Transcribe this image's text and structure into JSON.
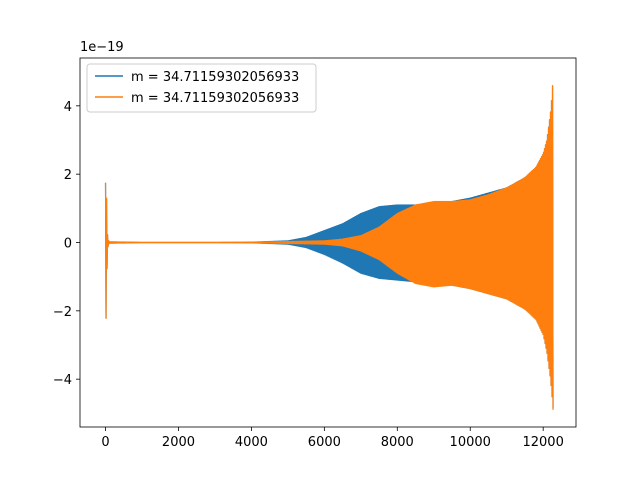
{
  "chart_data": {
    "type": "line",
    "title": "",
    "xlabel": "",
    "ylabel": "",
    "y_offset_label": "1e−19",
    "xlim": [
      -700,
      12900
    ],
    "ylim": [
      -5.4,
      5.4
    ],
    "x_ticks": [
      0,
      2000,
      4000,
      6000,
      8000,
      10000,
      12000
    ],
    "x_tick_labels": [
      "0",
      "2000",
      "4000",
      "6000",
      "8000",
      "10000",
      "12000"
    ],
    "y_ticks": [
      -4,
      -2,
      0,
      2,
      4
    ],
    "y_tick_labels": [
      "−4",
      "−2",
      "0",
      "2",
      "4"
    ],
    "grid": false,
    "legend_position": "top-left",
    "series": [
      {
        "name": "m = 34.71159302056933",
        "color": "#1f77b4",
        "envelope": {
          "x": [
            0,
            20,
            40,
            60,
            100,
            1000,
            3000,
            4000,
            5000,
            5500,
            6000,
            6500,
            7000,
            7500,
            8000,
            8500,
            9000,
            9500,
            10000,
            10500,
            11000,
            11500,
            11800,
            12000,
            12100,
            12200,
            12250,
            12270
          ],
          "upper": [
            1.75,
            1.7,
            0.6,
            0.1,
            0.02,
            0.005,
            0.005,
            0.01,
            0.05,
            0.15,
            0.35,
            0.55,
            0.85,
            1.05,
            1.1,
            1.1,
            1.15,
            1.2,
            1.3,
            1.45,
            1.6,
            1.9,
            2.2,
            2.6,
            3.0,
            3.8,
            4.4,
            4.95
          ],
          "lower": [
            -2.25,
            -2.2,
            -0.8,
            -0.15,
            -0.02,
            -0.005,
            -0.005,
            -0.01,
            -0.05,
            -0.15,
            -0.35,
            -0.6,
            -0.9,
            -1.05,
            -1.1,
            -1.15,
            -1.2,
            -1.25,
            -1.35,
            -1.5,
            -1.65,
            -1.95,
            -2.25,
            -2.7,
            -3.2,
            -4.0,
            -4.6,
            -4.85
          ]
        }
      },
      {
        "name": "m = 34.71159302056933",
        "color": "#ff7f0e",
        "envelope": {
          "x": [
            0,
            20,
            40,
            60,
            100,
            1000,
            3000,
            4000,
            5000,
            6000,
            6500,
            7000,
            7500,
            8000,
            8500,
            9000,
            9500,
            10000,
            10500,
            11000,
            11500,
            11800,
            12000,
            12100,
            12200,
            12250,
            12270
          ],
          "upper": [
            1.75,
            1.7,
            0.6,
            0.1,
            0.02,
            0.005,
            0.005,
            0.01,
            0.03,
            0.05,
            0.1,
            0.2,
            0.45,
            0.85,
            1.1,
            1.2,
            1.2,
            1.25,
            1.4,
            1.6,
            1.9,
            2.2,
            2.6,
            3.0,
            3.8,
            4.4,
            5.0
          ],
          "lower": [
            -2.25,
            -2.2,
            -0.8,
            -0.15,
            -0.02,
            -0.005,
            -0.005,
            -0.01,
            -0.03,
            -0.05,
            -0.1,
            -0.25,
            -0.5,
            -0.9,
            -1.2,
            -1.3,
            -1.25,
            -1.35,
            -1.5,
            -1.65,
            -1.95,
            -2.25,
            -2.7,
            -3.2,
            -4.0,
            -4.6,
            -4.9
          ]
        }
      }
    ]
  }
}
